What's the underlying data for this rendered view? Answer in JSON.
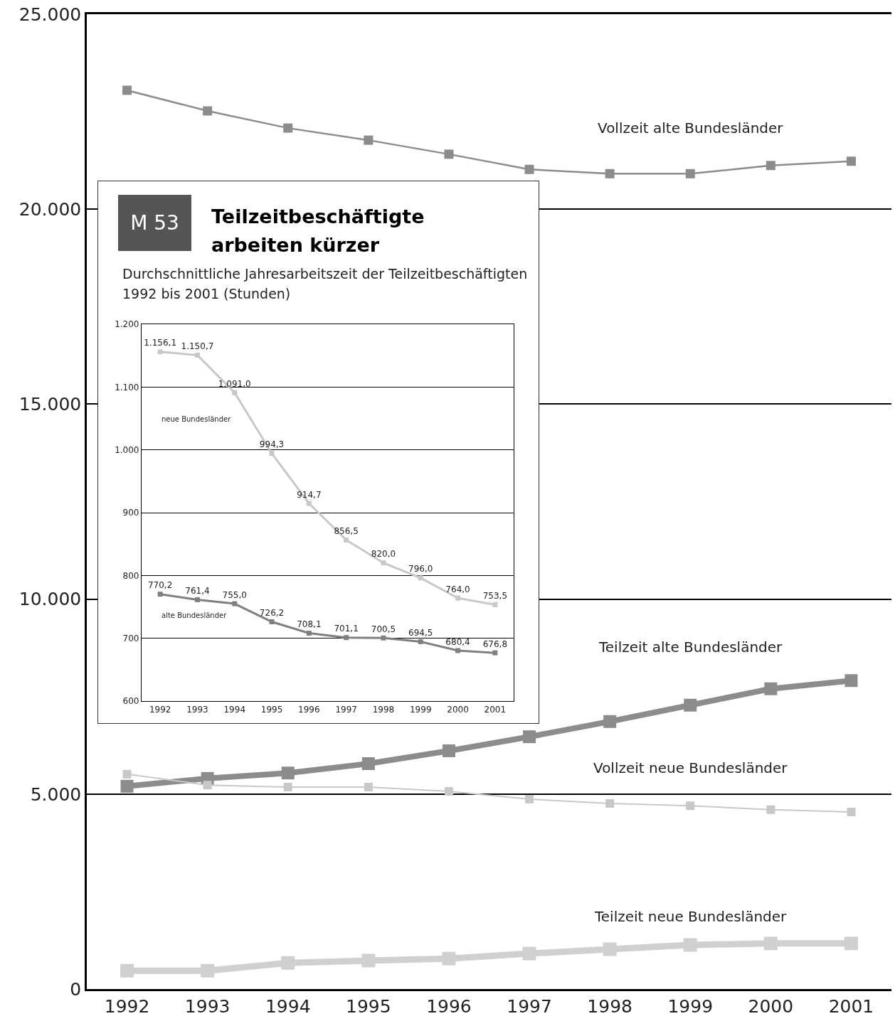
{
  "chart_data": [
    {
      "type": "line",
      "categories": [
        "1992",
        "1993",
        "1994",
        "1995",
        "1996",
        "1997",
        "1998",
        "1999",
        "2000",
        "2001"
      ],
      "series": [
        {
          "name": "Vollzeit alte Bundesländer",
          "color": "#8c8c8c",
          "values": [
            23050,
            22520,
            22080,
            21770,
            21410,
            21020,
            20910,
            20910,
            21120,
            21230
          ]
        },
        {
          "name": "Teilzeit alte Bundesländer",
          "color": "#8c8c8c",
          "values": [
            5200,
            5400,
            5540,
            5780,
            6110,
            6470,
            6860,
            7280,
            7700,
            7910
          ]
        },
        {
          "name": "Vollzeit neue Bundesländer",
          "color": "#c8c8c8",
          "values": [
            5510,
            5230,
            5180,
            5180,
            5070,
            4870,
            4760,
            4700,
            4600,
            4540
          ]
        },
        {
          "name": "Teilzeit neue Bundesländer",
          "color": "#d0d0d0",
          "values": [
            470,
            470,
            670,
            730,
            780,
            910,
            1020,
            1130,
            1170,
            1170
          ]
        }
      ],
      "ylim": [
        0,
        25000
      ],
      "yticks": [
        0,
        {
          "value": 5000,
          "label": "5.000"
        },
        {
          "value": 10000,
          "label": "10.000"
        },
        {
          "value": 15000,
          "label": "15.000"
        },
        {
          "value": 20000,
          "label": "20.000"
        },
        {
          "value": 25000,
          "label": "25.000"
        }
      ],
      "grid": "y",
      "legend": false,
      "marker": "square"
    },
    {
      "type": "line",
      "title": "Teilzeitbeschäftigte arbeiten kürzer",
      "subtitle": "Durchschnittliche Jahresarbeitszeit der Teilzeitbeschäftigten 1992 bis 2001 (Stunden)",
      "annotations": [
        "M 53"
      ],
      "categories": [
        "1992",
        "1993",
        "1994",
        "1995",
        "1996",
        "1997",
        "1998",
        "1999",
        "2000",
        "2001"
      ],
      "series": [
        {
          "name": "neue Bundesländer",
          "color": "#c8c8c8",
          "values": [
            1156.1,
            1150.7,
            1091.0,
            994.3,
            914.7,
            856.5,
            820.0,
            796.0,
            764.0,
            753.5
          ],
          "value_labels": [
            "1.156,1",
            "1.150,7",
            "1.091,0",
            "994,3",
            "914,7",
            "856,5",
            "820,0",
            "796,0",
            "764,0",
            "753,5"
          ]
        },
        {
          "name": "alte Bundesländer",
          "color": "#808080",
          "values": [
            770.2,
            761.4,
            755.0,
            726.2,
            708.1,
            701.1,
            700.5,
            694.5,
            680.4,
            676.8
          ],
          "value_labels": [
            "770,2",
            "761,4",
            "755,0",
            "726,2",
            "708,1",
            "701,1",
            "700,5",
            "694,5",
            "680,4",
            "676,8"
          ]
        }
      ],
      "ylim": [
        600,
        1200
      ],
      "yticks": [
        600,
        700,
        800,
        900,
        {
          "value": 1000,
          "label": "1.000"
        },
        {
          "value": 1100,
          "label": "1.100"
        },
        {
          "value": 1200,
          "label": "1.200"
        }
      ],
      "grid": "y",
      "legend": false,
      "marker": "square"
    }
  ]
}
